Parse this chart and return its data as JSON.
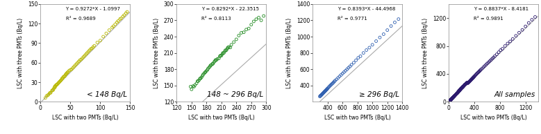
{
  "panels": [
    {
      "label": "< 148 Bq/L",
      "equation": "Y = 0.9272*X - 1.0997",
      "r2": "R² = 0.9689",
      "xlim": [
        0,
        150
      ],
      "ylim": [
        0,
        150
      ],
      "xticks": [
        0,
        50,
        100,
        150
      ],
      "yticks": [
        0,
        30,
        60,
        90,
        120,
        150
      ],
      "color": "#b8b800",
      "slope": 0.9272,
      "intercept": -1.0997,
      "x_data": [
        8,
        10,
        12,
        13,
        15,
        16,
        17,
        19,
        20,
        21,
        22,
        23,
        24,
        24,
        25,
        26,
        27,
        28,
        29,
        30,
        31,
        32,
        33,
        34,
        35,
        36,
        37,
        38,
        39,
        40,
        41,
        42,
        43,
        44,
        45,
        46,
        48,
        50,
        52,
        54,
        56,
        58,
        60,
        62,
        64,
        66,
        68,
        70,
        72,
        74,
        76,
        78,
        80,
        82,
        84,
        86,
        88,
        90,
        95,
        100,
        105,
        110,
        115,
        120,
        122,
        125,
        128,
        130,
        133,
        135,
        138,
        140,
        143,
        145
      ],
      "y_data": [
        6,
        9,
        10,
        11,
        13,
        14,
        14,
        17,
        18,
        18,
        20,
        22,
        22,
        24,
        24,
        26,
        26,
        27,
        28,
        29,
        30,
        31,
        32,
        33,
        34,
        36,
        36,
        38,
        39,
        39,
        40,
        42,
        43,
        44,
        45,
        46,
        48,
        49,
        50,
        52,
        54,
        56,
        58,
        60,
        62,
        64,
        65,
        67,
        69,
        71,
        73,
        75,
        77,
        79,
        81,
        82,
        84,
        86,
        91,
        94,
        100,
        105,
        110,
        114,
        116,
        119,
        122,
        124,
        127,
        128,
        131,
        133,
        136,
        138
      ]
    },
    {
      "label": "148 ~ 296 Bq/L",
      "equation": "Y = 0.8292*X - 22.3515",
      "r2": "R² = 0.8113",
      "xlim": [
        120,
        300
      ],
      "ylim": [
        120,
        300
      ],
      "xticks": [
        120,
        150,
        180,
        210,
        240,
        270,
        300
      ],
      "yticks": [
        120,
        150,
        180,
        210,
        240,
        270,
        300
      ],
      "color": "#228B22",
      "slope": 0.8292,
      "intercept": -22.3515,
      "x_data": [
        148,
        150,
        153,
        155,
        157,
        160,
        162,
        163,
        165,
        167,
        168,
        170,
        172,
        173,
        175,
        177,
        178,
        180,
        182,
        183,
        185,
        187,
        188,
        190,
        192,
        193,
        195,
        197,
        198,
        200,
        202,
        205,
        207,
        208,
        210,
        212,
        213,
        215,
        217,
        218,
        220,
        222,
        223,
        225,
        228,
        230,
        235,
        240,
        245,
        250,
        255,
        260,
        265,
        270,
        275,
        280,
        285,
        290,
        295
      ],
      "y_data": [
        148,
        143,
        149,
        148,
        151,
        154,
        158,
        158,
        160,
        163,
        163,
        165,
        168,
        170,
        172,
        174,
        175,
        177,
        179,
        181,
        183,
        185,
        187,
        188,
        190,
        190,
        193,
        195,
        197,
        197,
        199,
        200,
        204,
        205,
        205,
        208,
        210,
        210,
        213,
        215,
        215,
        218,
        220,
        221,
        220,
        225,
        230,
        235,
        242,
        247,
        248,
        253,
        255,
        262,
        268,
        272,
        275,
        270,
        278
      ]
    },
    {
      "label": "≥ 296 Bq/L",
      "equation": "Y = 0.8393*X - 44.4968",
      "r2": "R² = 0.9771",
      "xlim": [
        200,
        1400
      ],
      "ylim": [
        200,
        1400
      ],
      "xticks": [
        400,
        600,
        800,
        1000,
        1200,
        1400
      ],
      "yticks": [
        400,
        600,
        800,
        1000,
        1200,
        1400
      ],
      "color": "#3060b0",
      "slope": 0.8393,
      "intercept": -44.4968,
      "x_data": [
        296,
        300,
        305,
        310,
        315,
        320,
        325,
        330,
        335,
        340,
        345,
        350,
        355,
        360,
        365,
        370,
        375,
        380,
        385,
        390,
        395,
        400,
        410,
        420,
        430,
        440,
        450,
        460,
        470,
        480,
        490,
        500,
        520,
        540,
        560,
        580,
        600,
        620,
        640,
        660,
        680,
        700,
        720,
        750,
        780,
        810,
        840,
        880,
        920,
        960,
        1000,
        1050,
        1100,
        1150,
        1200,
        1250,
        1300,
        1350
      ],
      "y_data": [
        265,
        272,
        275,
        278,
        283,
        288,
        293,
        297,
        302,
        307,
        312,
        317,
        322,
        327,
        330,
        336,
        341,
        345,
        350,
        355,
        360,
        365,
        375,
        385,
        395,
        404,
        413,
        422,
        430,
        440,
        450,
        460,
        476,
        494,
        512,
        530,
        548,
        565,
        582,
        600,
        618,
        635,
        655,
        680,
        710,
        740,
        760,
        800,
        835,
        865,
        900,
        945,
        990,
        1030,
        1080,
        1130,
        1175,
        1215
      ]
    },
    {
      "label": "All samples",
      "equation": "Y = 0.8837*X - 8.4181",
      "r2": "R² = 0.9891",
      "xlim": [
        0,
        1400
      ],
      "ylim": [
        0,
        1400
      ],
      "xticks": [
        0,
        400,
        800,
        1200
      ],
      "yticks": [
        0,
        400,
        800,
        1200
      ],
      "color_all": "#2d1b6e",
      "slope": 0.8837,
      "intercept": -8.4181,
      "x_data_low": [
        8,
        10,
        12,
        13,
        15,
        16,
        17,
        19,
        20,
        21,
        22,
        23,
        24,
        24,
        25,
        26,
        27,
        28,
        29,
        30,
        31,
        32,
        33,
        34,
        35,
        36,
        37,
        38,
        39,
        40,
        41,
        42,
        43,
        44,
        45,
        46,
        48,
        50,
        52,
        54,
        56,
        58,
        60,
        62,
        64,
        66,
        68,
        70,
        72,
        74,
        76,
        78,
        80,
        82,
        84,
        86,
        88,
        90,
        95,
        100,
        105,
        110,
        115,
        120,
        122,
        125,
        128,
        130,
        133,
        135,
        138,
        140,
        143,
        145
      ],
      "y_data_low": [
        6,
        9,
        10,
        11,
        13,
        14,
        14,
        17,
        18,
        18,
        20,
        22,
        22,
        24,
        24,
        26,
        26,
        27,
        28,
        29,
        30,
        31,
        32,
        33,
        34,
        36,
        36,
        38,
        39,
        39,
        40,
        42,
        43,
        44,
        45,
        46,
        48,
        49,
        50,
        52,
        54,
        56,
        58,
        60,
        62,
        64,
        65,
        67,
        69,
        71,
        73,
        75,
        77,
        79,
        81,
        82,
        84,
        86,
        91,
        94,
        100,
        105,
        110,
        114,
        116,
        119,
        122,
        124,
        127,
        128,
        131,
        133,
        136,
        138
      ],
      "x_data_mid": [
        148,
        150,
        153,
        155,
        157,
        160,
        162,
        163,
        165,
        167,
        168,
        170,
        172,
        173,
        175,
        177,
        178,
        180,
        182,
        183,
        185,
        187,
        188,
        190,
        192,
        193,
        195,
        197,
        198,
        200,
        202,
        205,
        207,
        208,
        210,
        212,
        213,
        215,
        217,
        218,
        220,
        222,
        223,
        225,
        228,
        230,
        235,
        240,
        245,
        250,
        255,
        260,
        265,
        270,
        275,
        280,
        285,
        290,
        295
      ],
      "y_data_mid": [
        148,
        143,
        149,
        148,
        151,
        154,
        158,
        158,
        160,
        163,
        163,
        165,
        168,
        170,
        172,
        174,
        175,
        177,
        179,
        181,
        183,
        185,
        187,
        188,
        190,
        190,
        193,
        195,
        197,
        197,
        199,
        200,
        204,
        205,
        205,
        208,
        210,
        210,
        213,
        215,
        215,
        218,
        220,
        221,
        220,
        225,
        230,
        235,
        242,
        247,
        248,
        253,
        255,
        262,
        268,
        272,
        275,
        270,
        278
      ],
      "x_data_high": [
        296,
        300,
        305,
        310,
        315,
        320,
        325,
        330,
        335,
        340,
        345,
        350,
        355,
        360,
        365,
        370,
        375,
        380,
        385,
        390,
        395,
        400,
        410,
        420,
        430,
        440,
        450,
        460,
        470,
        480,
        490,
        500,
        520,
        540,
        560,
        580,
        600,
        620,
        640,
        660,
        680,
        700,
        720,
        750,
        780,
        810,
        840,
        880,
        920,
        960,
        1000,
        1050,
        1100,
        1150,
        1200,
        1250,
        1300,
        1350
      ],
      "y_data_high": [
        265,
        272,
        275,
        278,
        283,
        288,
        293,
        297,
        302,
        307,
        312,
        317,
        322,
        327,
        330,
        336,
        341,
        345,
        350,
        355,
        360,
        365,
        375,
        385,
        395,
        404,
        413,
        422,
        430,
        440,
        450,
        460,
        476,
        494,
        512,
        530,
        548,
        565,
        582,
        600,
        618,
        635,
        655,
        680,
        710,
        740,
        760,
        800,
        835,
        865,
        900,
        945,
        990,
        1030,
        1080,
        1130,
        1175,
        1215
      ]
    }
  ],
  "xlabel": "LSC with two PMTs (Bq/L)",
  "ylabel": "LSC with three PMTs (Bq/L)",
  "bg_color": "#ffffff",
  "text_color": "#000000",
  "line_color": "#aaaaaa",
  "marker_size": 8,
  "tick_fontsize": 5.5,
  "label_fontsize": 5.5,
  "eq_fontsize": 5.0
}
